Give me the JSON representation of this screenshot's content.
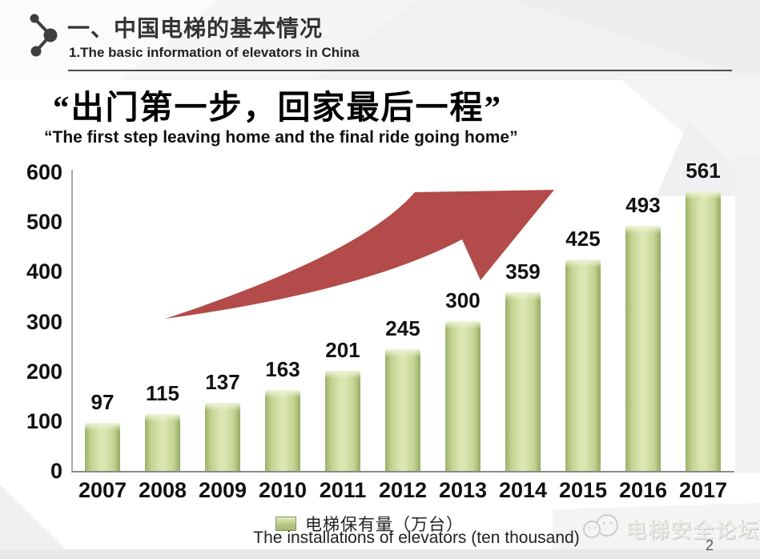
{
  "header": {
    "title_cn": "一、中国电梯的基本情况",
    "title_en": "1.The basic information of elevators in China"
  },
  "quote": {
    "cn": "“出门第一步，回家最后一程”",
    "en": "“The first step leaving home and the final ride going home”"
  },
  "chart_data": {
    "type": "bar",
    "title": "",
    "categories": [
      "2007",
      "2008",
      "2009",
      "2010",
      "2011",
      "2012",
      "2013",
      "2014",
      "2015",
      "2016",
      "2017"
    ],
    "values": [
      97,
      115,
      137,
      163,
      201,
      245,
      300,
      359,
      425,
      493,
      561
    ],
    "series_name": "电梯保有量（万台）",
    "legend_label": "电梯保有量（万台）",
    "caption": "The installations of elevators (ten thousand)",
    "xlabel": "",
    "ylabel": "",
    "ylim": [
      0,
      600
    ],
    "yticks": [
      0,
      100,
      200,
      300,
      400,
      500,
      600
    ],
    "grid": false,
    "legend_position": "bottom",
    "value_labels_shown": true,
    "bar_colors": {
      "edge": "#9cb169",
      "mid": "#dce6b3",
      "top_highlight": "#eef3d6"
    },
    "annotations": [
      {
        "type": "block-arrow",
        "direction": "up-right",
        "color": "#b24b49",
        "meaning": "rising trend across 2007-2017"
      }
    ]
  },
  "footer": {
    "watermark": "电梯安全论坛",
    "page_number": "2"
  }
}
